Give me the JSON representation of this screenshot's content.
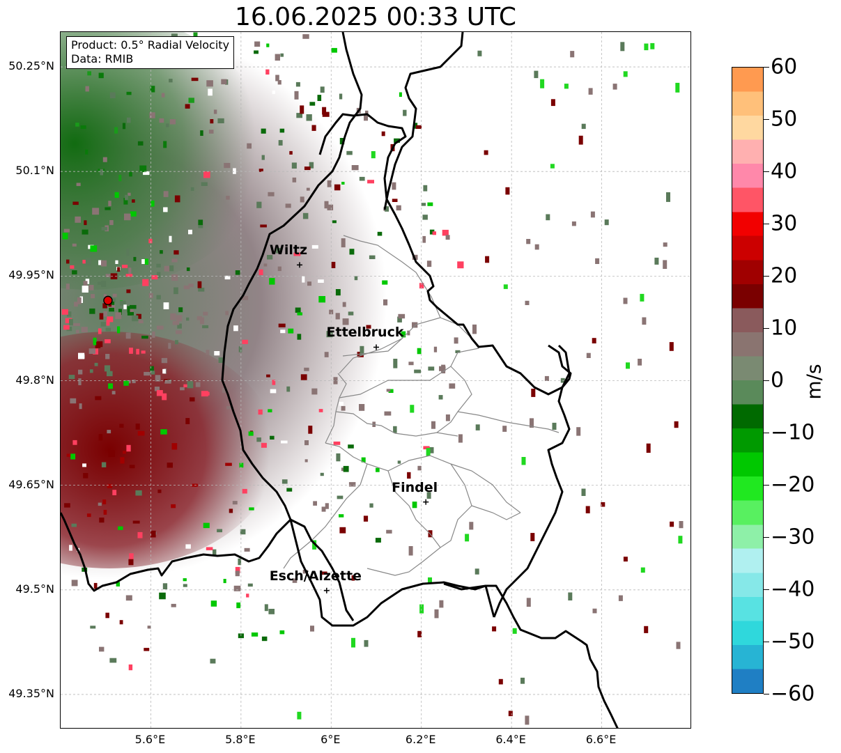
{
  "title": "16.06.2025 00:33 UTC",
  "info_box": {
    "product": "Product: 0.5° Radial Velocity",
    "data": "Data: RMIB"
  },
  "map": {
    "lon_range": [
      5.4,
      6.8
    ],
    "lat_range": [
      49.3,
      50.3
    ],
    "lat_ticks": [
      "50.25°N",
      "50.1°N",
      "49.95°N",
      "49.8°N",
      "49.65°N",
      "49.5°N",
      "49.35°N"
    ],
    "lat_values": [
      50.25,
      50.1,
      49.95,
      49.8,
      49.65,
      49.5,
      49.35
    ],
    "lon_ticks": [
      "5.6°E",
      "5.8°E",
      "6°E",
      "6.2°E",
      "6.4°E",
      "6.6°E"
    ],
    "lon_values": [
      5.6,
      5.8,
      6.0,
      6.2,
      6.4,
      6.6
    ],
    "radar_site": {
      "lon": 5.505,
      "lat": 49.915
    },
    "cities": [
      {
        "name": "Wiltz",
        "lon": 5.93,
        "lat": 49.966
      },
      {
        "name": "Ettelbruck",
        "lon": 6.1,
        "lat": 49.848
      },
      {
        "name": "Findel",
        "lon": 6.21,
        "lat": 49.626
      },
      {
        "name": "Esch/Alzette",
        "lon": 5.99,
        "lat": 49.499
      }
    ],
    "colors": {
      "border": "#000000",
      "canton_border": "#888888",
      "grid": "#b8b8b8",
      "radar_marker": "#e00000"
    }
  },
  "colorbar": {
    "label": "m/s",
    "ticks": [
      "60",
      "50",
      "40",
      "30",
      "20",
      "10",
      "0",
      "−10",
      "−20",
      "−30",
      "−40",
      "−50",
      "−60"
    ],
    "tick_values": [
      60,
      50,
      40,
      30,
      20,
      10,
      0,
      -10,
      -20,
      -30,
      -40,
      -50,
      -60
    ],
    "range": [
      -60,
      60
    ],
    "gradient": [
      "#1f7fc4",
      "#27b4d4",
      "#2fd8dc",
      "#58e2e2",
      "#86e8e8",
      "#b0f0f0",
      "#8ef0a8",
      "#58f060",
      "#20e820",
      "#00c800",
      "#009a00",
      "#006a00",
      "#5a8a5a",
      "#7a8a72",
      "#8a7470",
      "#8a5a5c",
      "#7a0000",
      "#a00000",
      "#cc0000",
      "#f20000",
      "#ff5566",
      "#ff88aa",
      "#ffb0b0",
      "#ffd8a0",
      "#ffc07a",
      "#ff9a50"
    ]
  }
}
